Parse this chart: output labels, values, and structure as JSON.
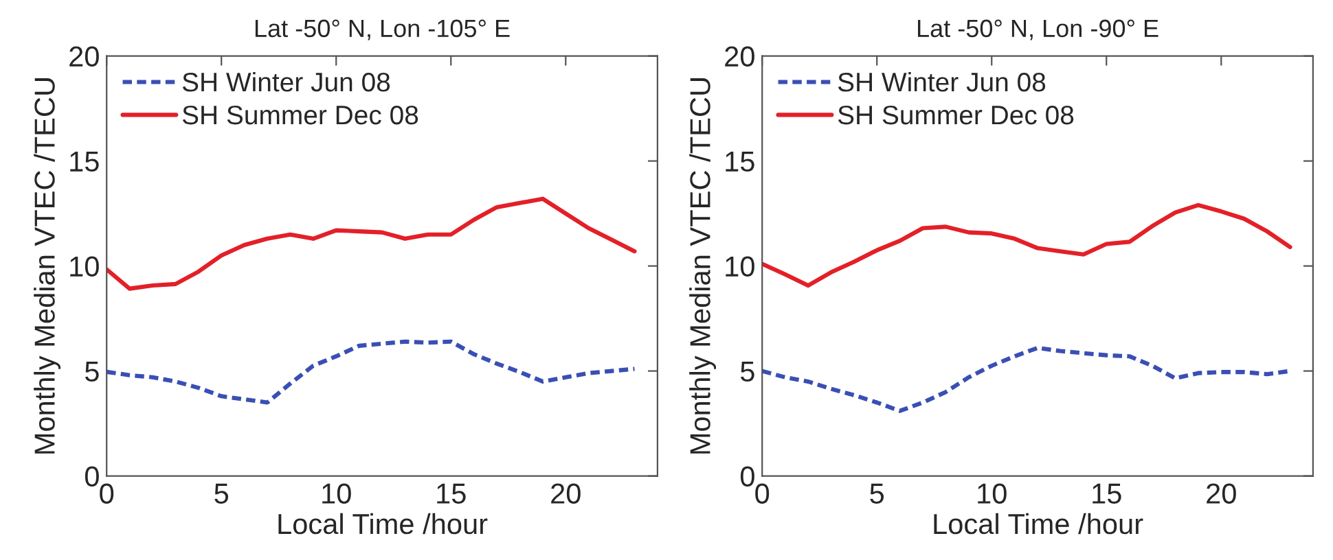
{
  "chart_data": [
    {
      "type": "line",
      "title": "Lat -50° N, Lon -105° E",
      "xlabel": "Local Time /hour",
      "ylabel": "Monthly Median VTEC /TECU",
      "x": [
        0,
        1,
        2,
        3,
        4,
        5,
        6,
        7,
        8,
        9,
        10,
        11,
        12,
        13,
        14,
        15,
        16,
        17,
        18,
        19,
        20,
        21,
        22,
        23
      ],
      "series": [
        {
          "name": "SH Winter Jun 08",
          "color": "#3a4fb4",
          "line_style": "dashed",
          "values": [
            4.96,
            4.8,
            4.7,
            4.5,
            4.2,
            3.8,
            3.65,
            3.5,
            4.4,
            5.25,
            5.7,
            6.2,
            6.3,
            6.4,
            6.35,
            6.4,
            5.8,
            5.35,
            4.95,
            4.5,
            4.7,
            4.9,
            5.0,
            5.1
          ]
        },
        {
          "name": "SH Summer Dec 08",
          "color": "#e32028",
          "line_style": "solid",
          "values": [
            9.84,
            8.92,
            9.07,
            9.14,
            9.73,
            10.5,
            11.0,
            11.3,
            11.5,
            11.3,
            11.7,
            11.65,
            11.6,
            11.3,
            11.5,
            11.5,
            12.2,
            12.8,
            13.0,
            13.2,
            12.5,
            11.8,
            11.25,
            10.7
          ]
        }
      ],
      "xlim": [
        0,
        24
      ],
      "xticks": [
        0,
        5,
        10,
        15,
        20
      ],
      "ylim": [
        0,
        20
      ],
      "yticks": [
        0,
        5,
        10,
        15,
        20
      ],
      "grid": false,
      "legend": "top left"
    },
    {
      "type": "line",
      "title": "Lat -50° N, Lon -90° E",
      "xlabel": "Local Time /hour",
      "ylabel": "Monthly Median VTEC /TECU",
      "x": [
        0,
        1,
        2,
        3,
        4,
        5,
        6,
        7,
        8,
        9,
        10,
        11,
        12,
        13,
        14,
        15,
        16,
        17,
        18,
        19,
        20,
        21,
        22,
        23
      ],
      "series": [
        {
          "name": "SH Winter Jun 08",
          "color": "#3a4fb4",
          "line_style": "dashed",
          "values": [
            5.0,
            4.7,
            4.5,
            4.15,
            3.85,
            3.5,
            3.1,
            3.5,
            4.0,
            4.7,
            5.25,
            5.7,
            6.1,
            5.95,
            5.85,
            5.75,
            5.7,
            5.25,
            4.65,
            4.9,
            4.95,
            4.95,
            4.85,
            5.0
          ]
        },
        {
          "name": "SH Summer Dec 08",
          "color": "#e32028",
          "line_style": "solid",
          "values": [
            10.1,
            9.6,
            9.07,
            9.7,
            10.2,
            10.75,
            11.2,
            11.8,
            11.87,
            11.6,
            11.55,
            11.3,
            10.85,
            10.7,
            10.55,
            11.05,
            11.15,
            11.9,
            12.55,
            12.9,
            12.6,
            12.25,
            11.65,
            10.9
          ]
        }
      ],
      "xlim": [
        0,
        24
      ],
      "xticks": [
        0,
        5,
        10,
        15,
        20
      ],
      "ylim": [
        0,
        20
      ],
      "yticks": [
        0,
        5,
        10,
        15,
        20
      ],
      "grid": false,
      "legend": "top left"
    }
  ]
}
